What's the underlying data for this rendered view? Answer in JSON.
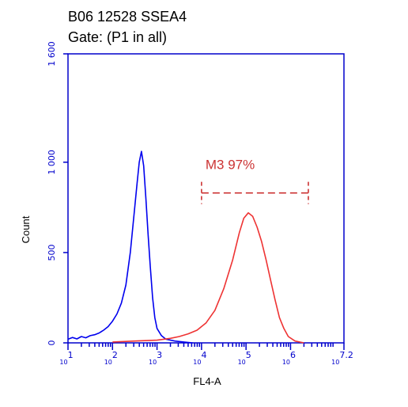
{
  "chart_data": {
    "type": "line",
    "title": "B06 12528 SSEA4",
    "subtitle": "Gate: (P1 in all)",
    "xlabel": "FL4-A",
    "ylabel": "Count",
    "x_scale": "log10",
    "xlim": [
      1,
      7.2
    ],
    "ylim": [
      0,
      1600
    ],
    "x_tick_labels": [
      {
        "base": "10",
        "exp": "1",
        "value": 1
      },
      {
        "base": "10",
        "exp": "2",
        "value": 2
      },
      {
        "base": "10",
        "exp": "3",
        "value": 3
      },
      {
        "base": "10",
        "exp": "4",
        "value": 4
      },
      {
        "base": "10",
        "exp": "5",
        "value": 5
      },
      {
        "base": "10",
        "exp": "6",
        "value": 6
      },
      {
        "base": "10",
        "exp": "7.2",
        "value": 7.2
      }
    ],
    "y_ticks": [
      {
        "label": "0",
        "value": 0
      },
      {
        "label": "500",
        "value": 500
      },
      {
        "label": "1 000",
        "value": 1000
      },
      {
        "label": "1 600",
        "value": 1600
      }
    ],
    "grid": false,
    "series": [
      {
        "color": "#0000ee",
        "points": [
          [
            1.0,
            20
          ],
          [
            1.1,
            30
          ],
          [
            1.2,
            22
          ],
          [
            1.3,
            35
          ],
          [
            1.4,
            28
          ],
          [
            1.5,
            40
          ],
          [
            1.6,
            45
          ],
          [
            1.7,
            55
          ],
          [
            1.8,
            70
          ],
          [
            1.9,
            90
          ],
          [
            2.0,
            120
          ],
          [
            2.1,
            160
          ],
          [
            2.2,
            220
          ],
          [
            2.3,
            320
          ],
          [
            2.4,
            500
          ],
          [
            2.5,
            750
          ],
          [
            2.55,
            880
          ],
          [
            2.6,
            1000
          ],
          [
            2.65,
            1060
          ],
          [
            2.7,
            980
          ],
          [
            2.75,
            800
          ],
          [
            2.8,
            600
          ],
          [
            2.85,
            420
          ],
          [
            2.9,
            250
          ],
          [
            2.95,
            140
          ],
          [
            3.0,
            80
          ],
          [
            3.1,
            40
          ],
          [
            3.2,
            20
          ],
          [
            3.4,
            10
          ],
          [
            3.6,
            5
          ],
          [
            3.8,
            0
          ]
        ]
      },
      {
        "color": "#ee3333",
        "points": [
          [
            2.0,
            5
          ],
          [
            2.5,
            10
          ],
          [
            3.0,
            15
          ],
          [
            3.3,
            25
          ],
          [
            3.5,
            35
          ],
          [
            3.7,
            50
          ],
          [
            3.9,
            70
          ],
          [
            4.1,
            110
          ],
          [
            4.3,
            180
          ],
          [
            4.5,
            300
          ],
          [
            4.7,
            460
          ],
          [
            4.85,
            610
          ],
          [
            4.95,
            690
          ],
          [
            5.05,
            720
          ],
          [
            5.15,
            700
          ],
          [
            5.25,
            640
          ],
          [
            5.35,
            560
          ],
          [
            5.45,
            460
          ],
          [
            5.55,
            350
          ],
          [
            5.65,
            240
          ],
          [
            5.75,
            140
          ],
          [
            5.85,
            80
          ],
          [
            5.95,
            35
          ],
          [
            6.1,
            10
          ],
          [
            6.3,
            0
          ]
        ]
      }
    ],
    "marker": {
      "name": "M3",
      "label": "M3 97%",
      "color": "#cc3333",
      "x_start": 4.0,
      "x_end": 6.4,
      "y": 830
    }
  }
}
